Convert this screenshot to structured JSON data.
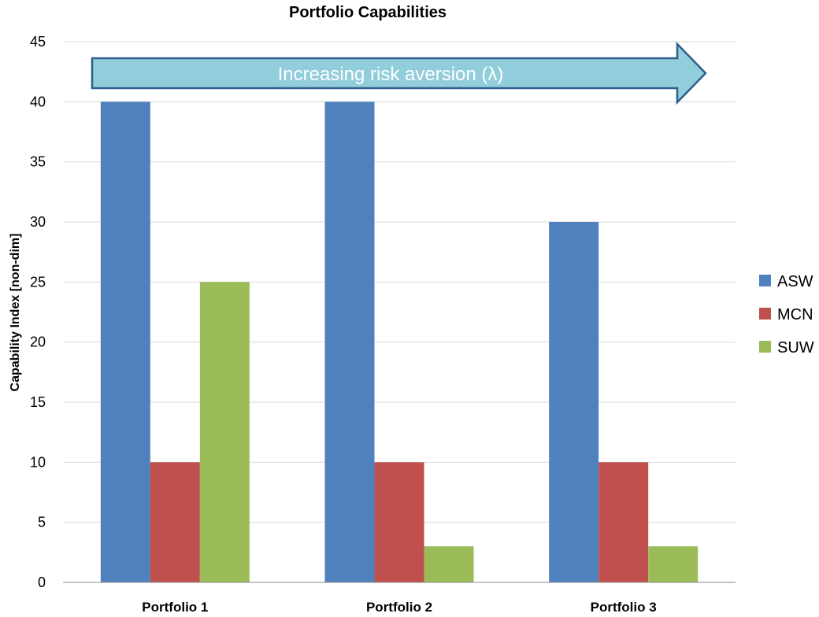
{
  "chart_data": {
    "type": "bar",
    "title": "Portfolio Capabilities",
    "xlabel": "",
    "ylabel": "Capability Index [non-dim]",
    "categories": [
      "Portfolio 1",
      "Portfolio 2",
      "Portfolio 3"
    ],
    "ylim": [
      0,
      45
    ],
    "yticks": [
      0,
      5,
      10,
      15,
      20,
      25,
      30,
      35,
      40,
      45
    ],
    "grid": true,
    "legend_position": "right",
    "series": [
      {
        "name": "ASW",
        "values": [
          40,
          40,
          30
        ],
        "color": "#4f81bd"
      },
      {
        "name": "MCN",
        "values": [
          10,
          10,
          10
        ],
        "color": "#c0504d"
      },
      {
        "name": "SUW",
        "values": [
          25,
          3,
          3
        ],
        "color": "#9bbb59"
      }
    ],
    "annotation": {
      "text": "Increasing risk aversion (λ)",
      "fill": "#92cddc",
      "stroke": "#2f5f8a"
    }
  }
}
